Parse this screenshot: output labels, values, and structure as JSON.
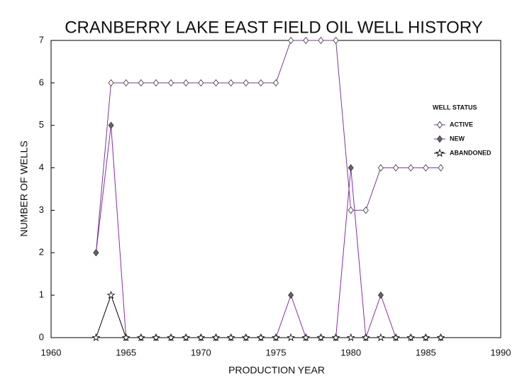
{
  "chart_data": {
    "type": "line",
    "title": "CRANBERRY LAKE EAST FIELD OIL WELL HISTORY",
    "x_label": "PRODUCTION YEAR",
    "y_label": "NUMBER OF WELLS",
    "legend_title": "WELL STATUS",
    "legend": "right",
    "grid": false,
    "x": [
      1963,
      1964,
      1965,
      1966,
      1967,
      1968,
      1969,
      1970,
      1971,
      1972,
      1973,
      1974,
      1975,
      1976,
      1977,
      1978,
      1979,
      1980,
      1981,
      1982,
      1983,
      1984,
      1985,
      1986
    ],
    "series": [
      {
        "name": "ACTIVE",
        "color": "#7a3a9a",
        "marker": "open-diamond",
        "values": [
          2,
          6,
          6,
          6,
          6,
          6,
          6,
          6,
          6,
          6,
          6,
          6,
          6,
          7,
          7,
          7,
          7,
          3,
          3,
          4,
          4,
          4,
          4,
          4
        ]
      },
      {
        "name": "NEW",
        "color": "#8a2ab0",
        "marker": "filled-diamond",
        "values": [
          2,
          5,
          0,
          0,
          0,
          0,
          0,
          0,
          0,
          0,
          0,
          0,
          0,
          1,
          0,
          0,
          0,
          4,
          0,
          1,
          0,
          0,
          0,
          0
        ]
      },
      {
        "name": "ABANDONED",
        "color": "#000000",
        "marker": "star",
        "values": [
          0,
          1,
          0,
          0,
          0,
          0,
          0,
          0,
          0,
          0,
          0,
          0,
          0,
          0,
          0,
          0,
          0,
          0,
          0,
          0,
          0,
          0,
          0,
          0
        ]
      }
    ],
    "xlim": [
      1960,
      1990
    ],
    "xticks": [
      1960,
      1965,
      1970,
      1975,
      1980,
      1985,
      1990
    ],
    "ylim": [
      0,
      7
    ],
    "yticks": [
      0,
      1,
      2,
      3,
      4,
      5,
      6,
      7
    ]
  }
}
